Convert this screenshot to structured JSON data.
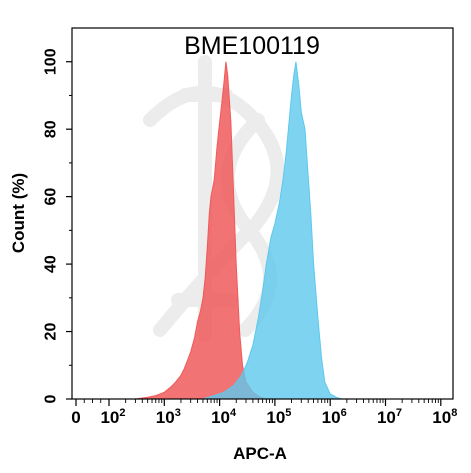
{
  "chart_data": {
    "type": "area",
    "title": "BME100119",
    "xlabel": "APC-A",
    "ylabel": "Count  (%)",
    "x_scale": "biexponential (0, then log10)",
    "xlim": [
      0,
      100000000
    ],
    "ylim": [
      0,
      110
    ],
    "grid": false,
    "yticks": [
      0,
      20,
      40,
      60,
      80,
      100
    ],
    "yticklabels": [
      "0",
      "20",
      "40",
      "60",
      "80",
      "100"
    ],
    "xticks": [
      0,
      100,
      1000,
      10000,
      100000,
      1000000,
      10000000,
      100000000
    ],
    "xticklabels": [
      {
        "base": "0",
        "exp": ""
      },
      {
        "base": "10",
        "exp": "2"
      },
      {
        "base": "10",
        "exp": "3"
      },
      {
        "base": "10",
        "exp": "4"
      },
      {
        "base": "10",
        "exp": "5"
      },
      {
        "base": "10",
        "exp": "6"
      },
      {
        "base": "10",
        "exp": "7"
      },
      {
        "base": "10",
        "exp": "8"
      }
    ],
    "series": [
      {
        "color": "#f05a5a",
        "fill_opacity": 0.85,
        "points": [
          [
            300,
            0
          ],
          [
            500,
            0.5
          ],
          [
            700,
            1
          ],
          [
            1000,
            2
          ],
          [
            1300,
            3.5
          ],
          [
            1600,
            5
          ],
          [
            2000,
            7
          ],
          [
            2300,
            9
          ],
          [
            2700,
            12
          ],
          [
            3000,
            14
          ],
          [
            3500,
            18
          ],
          [
            4000,
            23
          ],
          [
            4500,
            26
          ],
          [
            5000,
            30
          ],
          [
            5500,
            36
          ],
          [
            6000,
            45
          ],
          [
            6500,
            55
          ],
          [
            7000,
            60
          ],
          [
            8000,
            65
          ],
          [
            9000,
            75
          ],
          [
            10000,
            82
          ],
          [
            11000,
            88
          ],
          [
            12000,
            94
          ],
          [
            13000,
            100
          ],
          [
            14000,
            96
          ],
          [
            16000,
            82
          ],
          [
            18000,
            60
          ],
          [
            20000,
            40
          ],
          [
            23000,
            20
          ],
          [
            26000,
            10
          ],
          [
            30000,
            5
          ],
          [
            40000,
            2
          ],
          [
            55000,
            0.5
          ],
          [
            70000,
            0
          ]
        ]
      },
      {
        "color": "#5ec8ee",
        "fill_opacity": 0.8,
        "points": [
          [
            5000,
            0
          ],
          [
            8000,
            1
          ],
          [
            12000,
            2
          ],
          [
            18000,
            4
          ],
          [
            25000,
            7
          ],
          [
            32000,
            11
          ],
          [
            40000,
            16
          ],
          [
            50000,
            24
          ],
          [
            60000,
            32
          ],
          [
            70000,
            40
          ],
          [
            85000,
            48
          ],
          [
            100000,
            52
          ],
          [
            120000,
            58
          ],
          [
            140000,
            65
          ],
          [
            160000,
            73
          ],
          [
            180000,
            82
          ],
          [
            200000,
            90
          ],
          [
            220000,
            96
          ],
          [
            240000,
            100
          ],
          [
            270000,
            93
          ],
          [
            300000,
            85
          ],
          [
            350000,
            80
          ],
          [
            400000,
            66
          ],
          [
            450000,
            54
          ],
          [
            500000,
            40
          ],
          [
            600000,
            24
          ],
          [
            700000,
            12
          ],
          [
            800000,
            5
          ],
          [
            1000000,
            1.5
          ],
          [
            1300000,
            0.5
          ],
          [
            1600000,
            0
          ]
        ]
      }
    ]
  }
}
